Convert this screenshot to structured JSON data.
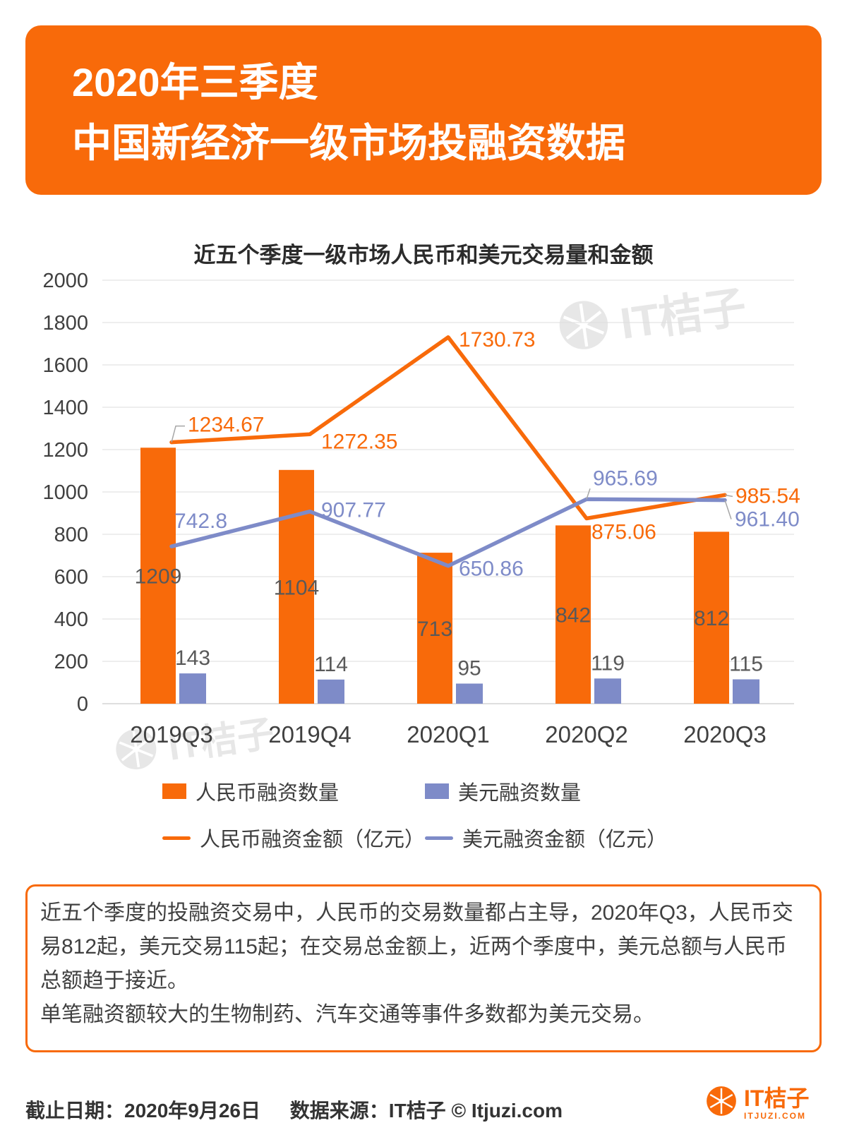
{
  "header": {
    "title_line1": "2020年三季度",
    "title_line2": "中国新经济一级市场投融资数据"
  },
  "chart": {
    "title": "近五个季度一级市场人民币和美元交易量和金额"
  },
  "chart_data": {
    "type": "bar",
    "categories": [
      "2019Q3",
      "2019Q4",
      "2020Q1",
      "2020Q2",
      "2020Q3"
    ],
    "series": [
      {
        "name": "人民币融资数量",
        "type": "bar",
        "color": "#f86a0a",
        "values": [
          1209,
          1104,
          713,
          842,
          812
        ]
      },
      {
        "name": "美元融资数量",
        "type": "bar",
        "color": "#7e8bc8",
        "values": [
          143,
          114,
          95,
          119,
          115
        ]
      },
      {
        "name": "人民币融资金额（亿元）",
        "type": "line",
        "color": "#f86a0a",
        "values": [
          1234.67,
          1272.35,
          1730.73,
          875.06,
          985.54
        ],
        "labels": [
          "1234.67",
          "1272.35",
          "1730.73",
          "875.06",
          "985.54"
        ]
      },
      {
        "name": "美元融资金额（亿元）",
        "type": "line",
        "color": "#7e8bc8",
        "values": [
          742.8,
          907.77,
          650.86,
          965.69,
          961.4
        ],
        "labels": [
          "742.8",
          "907.77",
          "650.86",
          "965.69",
          "961.40"
        ]
      }
    ],
    "title": "近五个季度一级市场人民币和美元交易量和金额",
    "xlabel": "",
    "ylabel": "",
    "ylim": [
      0,
      2000
    ],
    "ytick_step": 200,
    "grid": true,
    "legend_position": "bottom"
  },
  "watermark": {
    "text": "IT桔子"
  },
  "summary": {
    "paragraph1": "近五个季度的投融资交易中，人民币的交易数量都占主导，2020年Q3，人民币交易812起，美元交易115起；在交易总金额上，近两个季度中，美元总额与人民币总额趋于接近。",
    "paragraph2": "单笔融资额较大的生物制药、汽车交通等事件多数都为美元交易。"
  },
  "footer": {
    "date_label": "截止日期：2020年9月26日",
    "source_label": "数据来源：IT桔子 © Itjuzi.com",
    "logo_text": "IT桔子",
    "logo_subtext": "ITJUZI.COM"
  },
  "colors": {
    "accent": "#f86a0a",
    "secondary": "#7e8bc8",
    "grid": "#dcdcdc",
    "bar_label": "#595959"
  }
}
